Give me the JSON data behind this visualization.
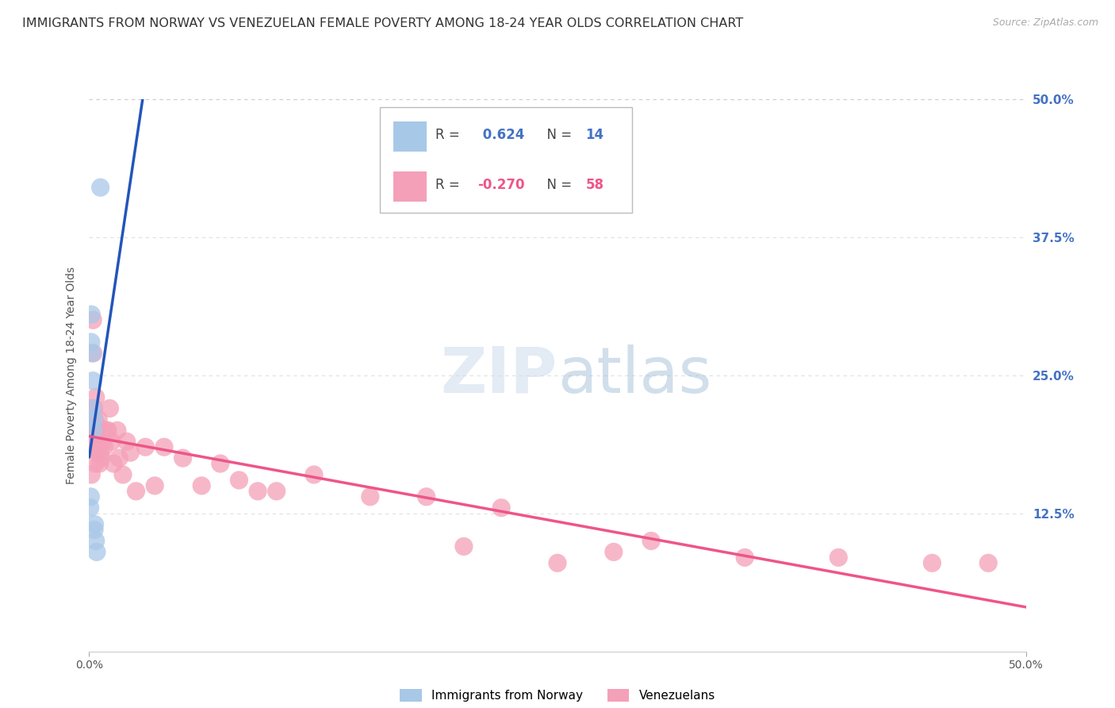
{
  "title": "IMMIGRANTS FROM NORWAY VS VENEZUELAN FEMALE POVERTY AMONG 18-24 YEAR OLDS CORRELATION CHART",
  "source": "Source: ZipAtlas.com",
  "ylabel": "Female Poverty Among 18-24 Year Olds",
  "xlim": [
    0.0,
    50.0
  ],
  "ylim": [
    0.0,
    50.0
  ],
  "yticks": [
    0.0,
    12.5,
    25.0,
    37.5,
    50.0
  ],
  "norway_R": 0.624,
  "norway_N": 14,
  "venezuela_R": -0.27,
  "venezuela_N": 58,
  "norway_color": "#a8c8e8",
  "venezuela_color": "#f4a0b8",
  "norway_line_color": "#2255bb",
  "venezuela_line_color": "#ee5588",
  "background_color": "#ffffff",
  "grid_color": "#e0e0e0",
  "right_tick_color": "#4472c4",
  "title_fontsize": 11.5,
  "norway_x": [
    0.05,
    0.08,
    0.1,
    0.12,
    0.15,
    0.18,
    0.2,
    0.22,
    0.25,
    0.28,
    0.3,
    0.35,
    0.4,
    0.6
  ],
  "norway_y": [
    13.0,
    14.0,
    28.0,
    30.5,
    27.0,
    22.0,
    24.5,
    20.0,
    21.0,
    11.0,
    11.5,
    10.0,
    9.0,
    42.0
  ],
  "venezuela_x": [
    0.05,
    0.08,
    0.1,
    0.12,
    0.14,
    0.16,
    0.18,
    0.2,
    0.22,
    0.24,
    0.26,
    0.28,
    0.3,
    0.32,
    0.35,
    0.38,
    0.4,
    0.42,
    0.45,
    0.5,
    0.55,
    0.6,
    0.65,
    0.7,
    0.75,
    0.8,
    0.9,
    1.0,
    1.1,
    1.2,
    1.3,
    1.5,
    1.6,
    1.8,
    2.0,
    2.2,
    2.5,
    3.0,
    3.5,
    4.0,
    5.0,
    6.0,
    7.0,
    8.0,
    9.0,
    10.0,
    12.0,
    15.0,
    18.0,
    20.0,
    22.0,
    25.0,
    28.0,
    30.0,
    35.0,
    40.0,
    45.0,
    48.0
  ],
  "venezuela_y": [
    20.0,
    21.0,
    18.5,
    16.0,
    20.0,
    22.0,
    20.0,
    30.0,
    27.0,
    19.0,
    22.0,
    21.0,
    19.0,
    17.0,
    23.0,
    20.0,
    19.5,
    20.5,
    18.0,
    21.0,
    17.0,
    18.0,
    17.5,
    19.0,
    20.0,
    18.5,
    20.0,
    20.0,
    22.0,
    19.0,
    17.0,
    20.0,
    17.5,
    16.0,
    19.0,
    18.0,
    14.5,
    18.5,
    15.0,
    18.5,
    17.5,
    15.0,
    17.0,
    15.5,
    14.5,
    14.5,
    16.0,
    14.0,
    14.0,
    9.5,
    13.0,
    8.0,
    9.0,
    10.0,
    8.5,
    8.5,
    8.0,
    8.0
  ]
}
